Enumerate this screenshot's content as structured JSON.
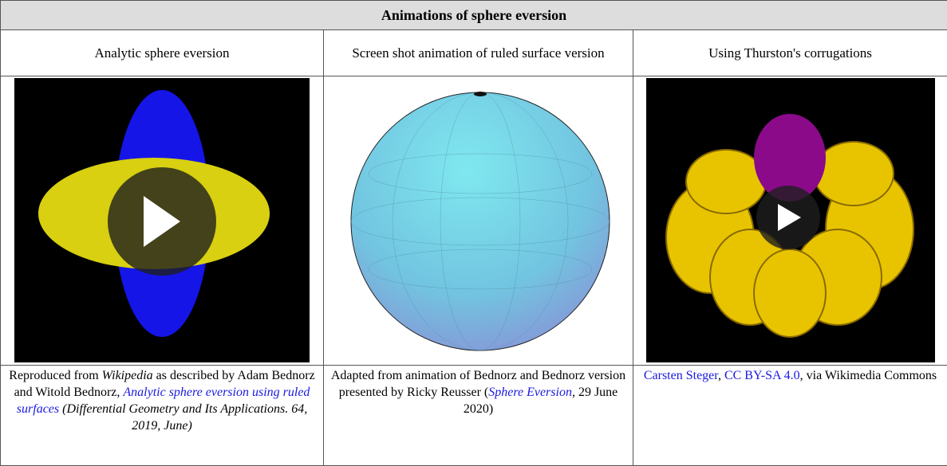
{
  "table": {
    "title": "Animations of sphere eversion",
    "headers": [
      "Analytic sphere eversion",
      "Screen shot animation of ruled surface version",
      "Using Thurston's corrugations"
    ],
    "captions": [
      [
        "Reproduced from ",
        "Wikipedia",
        " as described by Adam Bednorz and Witold Bednorz, ",
        "Analytic sphere eversion using ruled surfaces",
        " (Differential Geometry and Its Applications. 64, 2019, June)"
      ],
      [
        "Adapted from animation of Bednorz and Bednorz version presented by Ricky Reusser (",
        "Sphere Eversion",
        ", 29 June 2020)"
      ],
      [
        "Carsten Steger",
        ", ",
        "CC BY-SA 4.0",
        ", via Wikimedia Commons"
      ]
    ]
  }
}
